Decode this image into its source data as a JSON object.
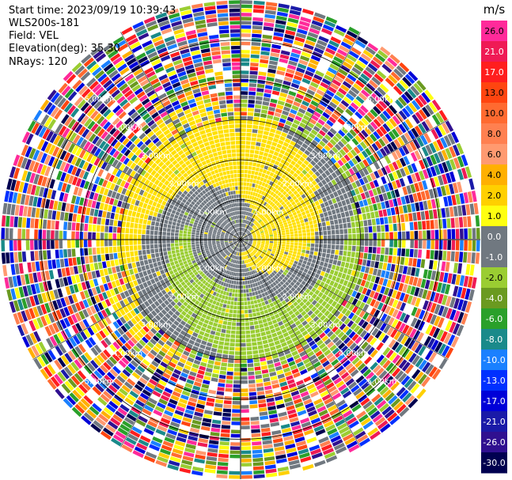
{
  "header": {
    "start_time": "Start time: 2023/09/19 10:39:43",
    "site": "WLS200s-181",
    "field": "Field: VEL",
    "elevation": "Elevation(deg): 35.30",
    "nrays": "NRays: 120"
  },
  "chart_data": {
    "type": "heatmap",
    "projection": "polar-ppi",
    "field": "VEL",
    "units": "m/s",
    "n_rays": 120,
    "range_km": [
      0,
      6
    ],
    "ring_labels": [
      "1.00km",
      "2.00km",
      "3.00km",
      "4.00km",
      "5.00km"
    ],
    "ring_values_km": [
      1,
      2,
      3,
      4,
      5
    ],
    "colorbar": {
      "unit_label": "m/s",
      "tick_labels": [
        "26.0",
        "21.0",
        "17.0",
        "13.0",
        "10.0",
        "8.0",
        "6.0",
        "4.0",
        "2.0",
        "1.0",
        "0.0",
        "-1.0",
        "-2.0",
        "-4.0",
        "-6.0",
        "-8.0",
        "-10.0",
        "-13.0",
        "-17.0",
        "-21.0",
        "-26.0",
        "-30.0"
      ],
      "colors": [
        "#ff2a9a",
        "#ef1a55",
        "#ff1e1e",
        "#ff4510",
        "#ff6a30",
        "#ff8050",
        "#ff9a70",
        "#ffb000",
        "#ffd000",
        "#ffff10",
        "#707880",
        "#707880",
        "#9acd32",
        "#6a9a20",
        "#2aa02a",
        "#1a8a8a",
        "#1a80ff",
        "#0030ff",
        "#0000d8",
        "#1a1aa8",
        "#301090",
        "#000050"
      ]
    },
    "near_field_pattern": "rotating wind field: yellow (+2 m/s) and green (-2 m/s) spiral bands around grey (~0 m/s) core, noisy random colours beyond ~3 km"
  }
}
